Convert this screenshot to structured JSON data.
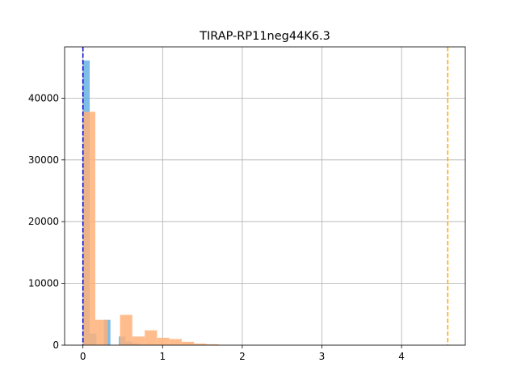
{
  "chart_data": {
    "type": "bar",
    "title": "TIRAP-RP11neg44K6.3",
    "xlabel": "",
    "ylabel": "",
    "xlim": [
      -0.23,
      4.8
    ],
    "ylim": [
      0,
      48300
    ],
    "x_ticks": [
      0,
      1,
      2,
      3,
      4
    ],
    "y_ticks": [
      0,
      10000,
      20000,
      30000,
      40000
    ],
    "grid": true,
    "legend": "none",
    "series": [
      {
        "color": "#5dade2",
        "alpha": 0.8,
        "bins": [
          {
            "x0": 0.0,
            "x1": 0.085,
            "count": 46100
          },
          {
            "x0": 0.085,
            "x1": 0.17,
            "count": 1900
          },
          {
            "x0": 0.26,
            "x1": 0.345,
            "count": 4100
          },
          {
            "x0": 0.45,
            "x1": 0.535,
            "count": 1400
          },
          {
            "x0": 0.535,
            "x1": 0.62,
            "count": 600
          },
          {
            "x0": 0.62,
            "x1": 0.705,
            "count": 300
          }
        ]
      },
      {
        "color": "#ffb27a",
        "alpha": 0.85,
        "bins": [
          {
            "x0": 0.0,
            "x1": 0.155,
            "count": 37800
          },
          {
            "x0": 0.155,
            "x1": 0.31,
            "count": 4100
          },
          {
            "x0": 0.31,
            "x1": 0.465,
            "count": 50
          },
          {
            "x0": 0.465,
            "x1": 0.62,
            "count": 4900
          },
          {
            "x0": 0.62,
            "x1": 0.775,
            "count": 1400
          },
          {
            "x0": 0.775,
            "x1": 0.93,
            "count": 2400
          },
          {
            "x0": 0.93,
            "x1": 1.085,
            "count": 1200
          },
          {
            "x0": 1.085,
            "x1": 1.24,
            "count": 1000
          },
          {
            "x0": 1.24,
            "x1": 1.395,
            "count": 550
          },
          {
            "x0": 1.395,
            "x1": 1.55,
            "count": 250
          },
          {
            "x0": 1.55,
            "x1": 1.705,
            "count": 150
          }
        ]
      }
    ],
    "vlines": [
      {
        "x": 0.0,
        "color": "#0000cc"
      },
      {
        "x": 4.58,
        "color": "#ffa500"
      }
    ]
  }
}
